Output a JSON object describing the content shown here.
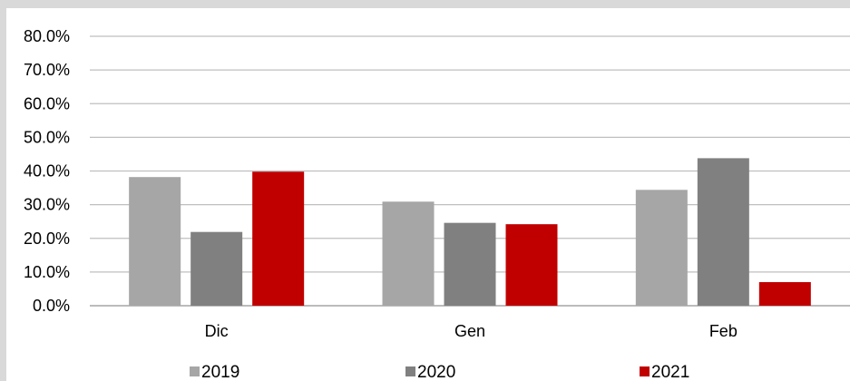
{
  "chart_data": {
    "type": "bar",
    "categories": [
      "Dic",
      "Gen",
      "Feb"
    ],
    "series": [
      {
        "name": "2019",
        "values": [
          38.2,
          30.9,
          34.4
        ],
        "color": "#a6a6a6"
      },
      {
        "name": "2020",
        "values": [
          21.9,
          24.6,
          43.8
        ],
        "color": "#808080"
      },
      {
        "name": "2021",
        "values": [
          39.8,
          24.2,
          7.0
        ],
        "color": "#c00000"
      }
    ],
    "y_ticks": [
      "0.0%",
      "10.0%",
      "20.0%",
      "30.0%",
      "40.0%",
      "50.0%",
      "60.0%",
      "70.0%",
      "80.0%"
    ],
    "ylim": [
      0,
      80
    ],
    "title": "",
    "xlabel": "",
    "ylabel": "",
    "grid": true,
    "legend_position": "bottom"
  }
}
